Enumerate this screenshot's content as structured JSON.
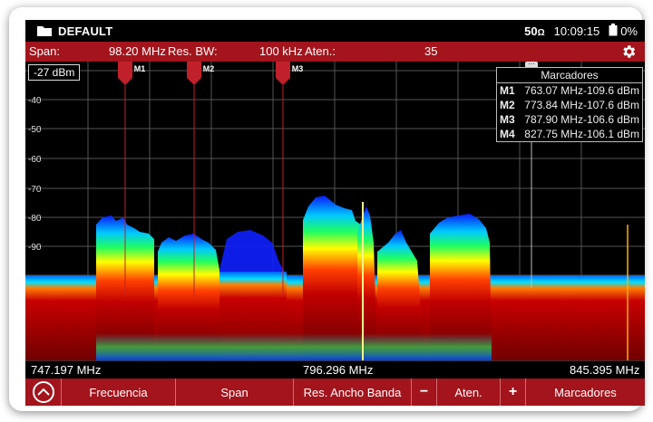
{
  "status": {
    "title": "DEFAULT",
    "impedance": "50",
    "impedance_unit": "Ω",
    "time": "10:09:15",
    "battery": "0%"
  },
  "params": {
    "span_label": "Span:",
    "span_value": "98.20 MHz",
    "rbw_label": "Res. BW:",
    "rbw_value": "100 kHz",
    "atten_label": "Aten.:",
    "atten_value": "35"
  },
  "plot": {
    "ref_level": "-27 dBm",
    "y_labels": [
      "-40",
      "-50",
      "-60",
      "-70",
      "-80",
      "-90"
    ],
    "markers": [
      "M1",
      "M2",
      "M3"
    ]
  },
  "marker_table": {
    "title": "Marcadores",
    "rows": [
      {
        "id": "M1",
        "value": "763.07 MHz-109.6 dBm"
      },
      {
        "id": "M2",
        "value": "773.84 MHz-107.6 dBm"
      },
      {
        "id": "M3",
        "value": "787.90 MHz-106.6 dBm"
      },
      {
        "id": "M4",
        "value": "827.75 MHz-106.1 dBm"
      }
    ]
  },
  "freq_axis": {
    "start": "747.197 MHz",
    "center": "796.296 MHz",
    "stop": "845.395 MHz"
  },
  "softkeys": {
    "frecuencia": "Frecuencia",
    "span": "Span",
    "rbw": "Res. Ancho Banda",
    "minus": "−",
    "aten": "Aten.",
    "plus": "+",
    "marcadores": "Marcadores"
  },
  "colors": {
    "accent": "#a3141c",
    "background": "#000000"
  }
}
